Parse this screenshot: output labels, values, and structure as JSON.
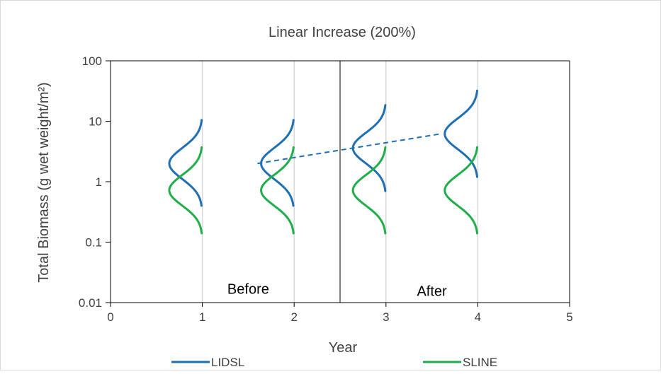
{
  "chart_data": {
    "type": "line",
    "title": "Linear Increase (200%)",
    "xlabel": "Year",
    "ylabel": "Total Biomass (g wet weight/m²)",
    "xlim": [
      0,
      5
    ],
    "ylim": [
      0.01,
      100
    ],
    "yscale": "log",
    "x_ticks": [
      "0",
      "1",
      "2",
      "3",
      "4",
      "5"
    ],
    "y_ticks": [
      "0.01",
      "0.1",
      "1",
      "10",
      "100"
    ],
    "grid": "vertical",
    "divider_x": 2.5,
    "period_labels": [
      {
        "text": "Before",
        "x": 1.5,
        "y": 0.014
      },
      {
        "text": "After",
        "x": 3.5,
        "y": 0.013
      }
    ],
    "legend_position": "bottom",
    "series": [
      {
        "name": "LIDSL",
        "color": "#1f6fb5",
        "distributions": [
          {
            "x": 1,
            "mode": 2.0,
            "min": 0.4,
            "max": 10.5
          },
          {
            "x": 2,
            "mode": 2.0,
            "min": 0.4,
            "max": 10.5
          },
          {
            "x": 3,
            "mode": 3.6,
            "min": 0.7,
            "max": 18.5
          },
          {
            "x": 4,
            "mode": 6.2,
            "min": 1.2,
            "max": 32.0
          }
        ],
        "trend": {
          "from": [
            1.6,
            2.0
          ],
          "to": [
            3.6,
            6.2
          ],
          "style": "dashed"
        }
      },
      {
        "name": "SLINE",
        "color": "#1fae4a",
        "distributions": [
          {
            "x": 1,
            "mode": 0.72,
            "min": 0.14,
            "max": 3.7
          },
          {
            "x": 2,
            "mode": 0.72,
            "min": 0.14,
            "max": 3.7
          },
          {
            "x": 3,
            "mode": 0.72,
            "min": 0.14,
            "max": 3.7
          },
          {
            "x": 4,
            "mode": 0.72,
            "min": 0.14,
            "max": 3.7
          }
        ]
      }
    ]
  }
}
